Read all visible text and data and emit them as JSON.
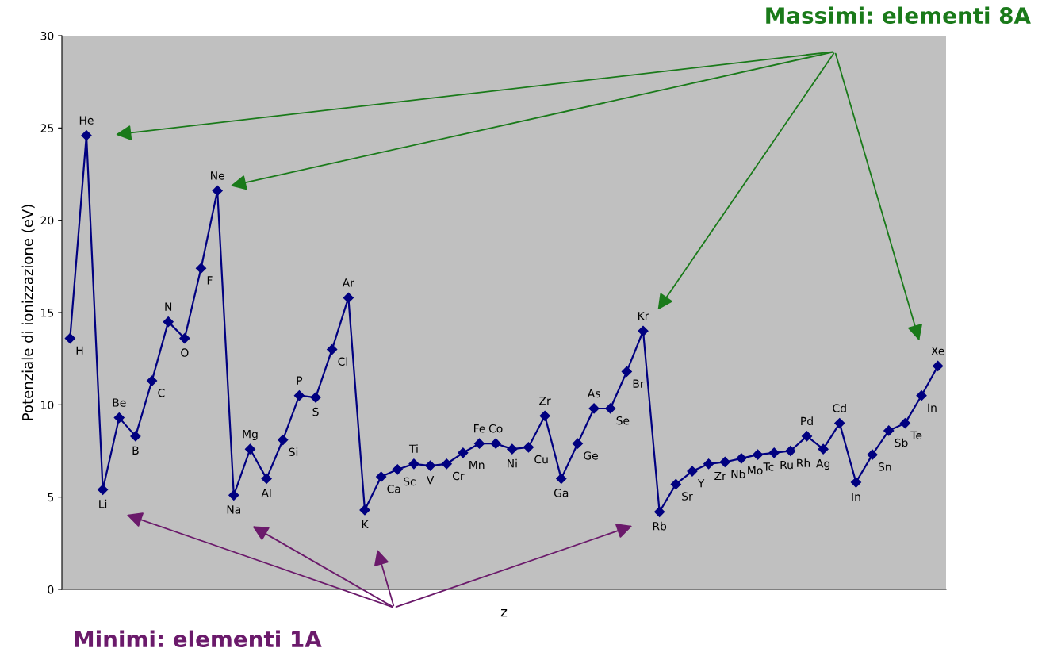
{
  "chart_data": {
    "type": "line",
    "xlabel": "z",
    "ylabel": "Potenziale di ionizzazione (eV)",
    "categories": [
      null,
      null,
      null,
      null,
      null,
      null,
      null,
      null,
      null,
      null,
      null,
      null,
      null,
      null,
      null,
      null,
      null,
      null,
      null,
      null,
      null,
      null,
      null,
      null,
      null,
      null,
      null,
      null,
      null,
      null,
      null,
      null,
      null,
      null,
      null,
      null,
      null,
      null,
      null,
      null,
      null,
      null,
      null,
      null,
      null,
      null,
      null,
      null,
      null,
      null,
      null,
      null,
      null,
      null
    ],
    "series": [
      {
        "color": "#000080",
        "values": [
          13.6,
          24.6,
          5.4,
          9.3,
          8.3,
          11.3,
          14.5,
          13.6,
          17.4,
          21.6,
          5.1,
          7.6,
          6.0,
          8.1,
          10.5,
          10.4,
          13.0,
          15.8,
          4.3,
          6.1,
          6.5,
          6.8,
          6.7,
          6.8,
          7.4,
          7.9,
          7.9,
          7.6,
          7.7,
          9.4,
          6.0,
          7.9,
          9.8,
          9.8,
          11.8,
          14.0,
          4.2,
          5.7,
          6.4,
          6.8,
          6.9,
          7.1,
          7.3,
          7.4,
          7.5,
          8.3,
          7.6,
          9.0,
          5.8,
          7.3,
          8.6,
          9.0,
          10.5,
          12.1
        ],
        "value_labels": [
          "H",
          "He",
          "Li",
          "Be",
          "B",
          "C",
          "N",
          "O",
          "F",
          "Ne",
          "Na",
          "Mg",
          "Al",
          "Si",
          "P",
          "S",
          "Cl",
          "Ar",
          "K",
          "Ca",
          "Sc",
          "Ti",
          "V",
          "Cr",
          "Mn",
          "Fe",
          "Co",
          "Ni",
          "Cu",
          "Zr",
          "Ga",
          "Ge",
          "As",
          "Se",
          "Br",
          "Kr",
          "Rb",
          "Sr",
          "Y",
          "Zr",
          "Nb",
          "Mo",
          "Tc",
          "Ru",
          "Rh",
          "Pd",
          "Ag",
          "Cd",
          "In",
          "Sn",
          "Sb",
          "Te",
          "In",
          "Xe"
        ]
      }
    ],
    "ylim": [
      0,
      30
    ],
    "yticks": [
      0,
      5,
      10,
      15,
      20,
      25,
      30
    ],
    "grid": false,
    "marker": "diamond",
    "line_style": "solid",
    "annotations": [
      "Massimi: elementi 8A",
      "Minimi: elementi 1A"
    ]
  }
}
